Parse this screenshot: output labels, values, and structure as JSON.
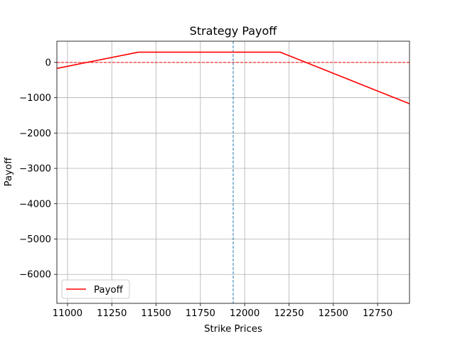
{
  "chart_data": {
    "type": "line",
    "title": "Strategy Payoff",
    "xlabel": "Strike Prices",
    "ylabel": "Payoff",
    "xlim": [
      10940,
      12930
    ],
    "ylim": [
      -6820,
      600
    ],
    "xticks": [
      11000,
      11250,
      11500,
      11750,
      12000,
      12250,
      12500,
      12750
    ],
    "xtick_labels": [
      "11000",
      "11250",
      "11500",
      "11750",
      "12000",
      "12250",
      "12500",
      "12750"
    ],
    "yticks": [
      0,
      -1000,
      -2000,
      -3000,
      -4000,
      -5000,
      -6000
    ],
    "ytick_labels": [
      "0",
      "−1000",
      "−2000",
      "−3000",
      "−4000",
      "−5000",
      "−6000"
    ],
    "grid": true,
    "legend": {
      "position": "lower-left"
    },
    "series": [
      {
        "name": "Payoff",
        "color": "#ff0000",
        "x": [
          10940,
          11400,
          12200,
          12930
        ],
        "y": [
          -170,
          290,
          290,
          -1170
        ]
      }
    ],
    "reference_lines": [
      {
        "orientation": "horizontal",
        "value": 0,
        "color": "#ff0000",
        "style": "dashed"
      },
      {
        "orientation": "vertical",
        "value": 11935,
        "color": "#1f77b4",
        "style": "dashed"
      }
    ]
  }
}
